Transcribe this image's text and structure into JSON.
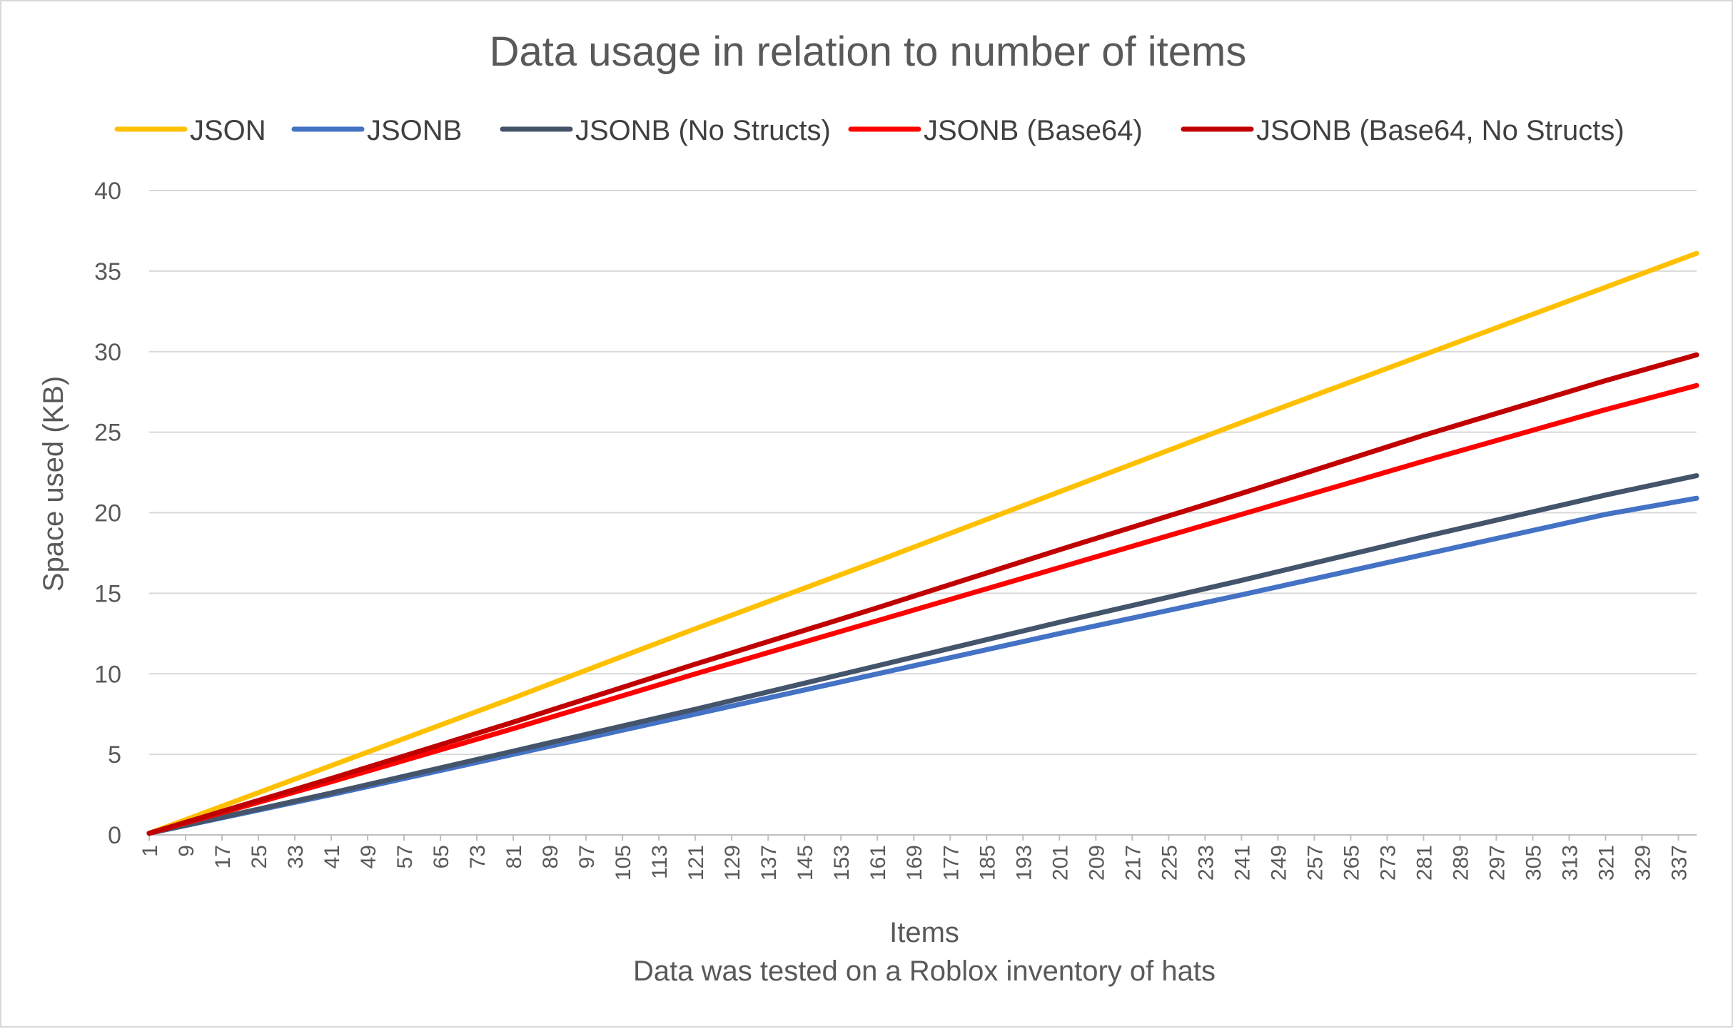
{
  "chart_data": {
    "type": "line",
    "title": "Data usage in relation to number of items",
    "xlabel": "Items",
    "subtitle": "Data was tested on a Roblox inventory of hats",
    "ylabel": "Space used (KB)",
    "ylim": [
      0,
      40
    ],
    "yticks": [
      "0",
      "5",
      "10",
      "15",
      "20",
      "25",
      "30",
      "35",
      "40"
    ],
    "xlim": [
      1,
      341
    ],
    "x_tick_labels": [
      "1",
      "9",
      "17",
      "25",
      "33",
      "41",
      "49",
      "57",
      "65",
      "73",
      "81",
      "89",
      "97",
      "105",
      "113",
      "121",
      "129",
      "137",
      "145",
      "153",
      "161",
      "169",
      "177",
      "185",
      "193",
      "201",
      "209",
      "217",
      "225",
      "233",
      "241",
      "249",
      "257",
      "265",
      "273",
      "281",
      "289",
      "297",
      "305",
      "313",
      "321",
      "329",
      "337"
    ],
    "grid": true,
    "legend_position": "top",
    "series": [
      {
        "name": "JSON",
        "color": "#FFC000",
        "x": [
          1,
          41,
          81,
          121,
          161,
          201,
          241,
          281,
          321,
          341
        ],
        "values": [
          0.1,
          4.3,
          8.5,
          12.8,
          17.0,
          21.3,
          25.6,
          29.8,
          34.0,
          36.1
        ]
      },
      {
        "name": "JSONB",
        "color": "#4472C4",
        "x": [
          1,
          41,
          81,
          121,
          161,
          201,
          241,
          281,
          321,
          341
        ],
        "values": [
          0.1,
          2.5,
          5.0,
          7.5,
          10.0,
          12.5,
          14.9,
          17.4,
          19.9,
          20.9
        ]
      },
      {
        "name": "JSONB (No Structs)",
        "color": "#44546A",
        "x": [
          1,
          41,
          81,
          121,
          161,
          201,
          241,
          281,
          321,
          341
        ],
        "values": [
          0.1,
          2.6,
          5.2,
          7.8,
          10.5,
          13.2,
          15.8,
          18.5,
          21.1,
          22.3
        ]
      },
      {
        "name": "JSONB (Base64)",
        "color": "#FF0000",
        "x": [
          1,
          41,
          81,
          121,
          161,
          201,
          241,
          281,
          321,
          341
        ],
        "values": [
          0.1,
          3.3,
          6.6,
          10.0,
          13.3,
          16.6,
          19.9,
          23.2,
          26.4,
          27.9
        ]
      },
      {
        "name": "JSONB (Base64, No Structs)",
        "color": "#C00000",
        "x": [
          1,
          41,
          81,
          121,
          161,
          201,
          241,
          281,
          321,
          341
        ],
        "values": [
          0.1,
          3.5,
          7.0,
          10.6,
          14.1,
          17.7,
          21.2,
          24.8,
          28.2,
          29.8
        ]
      }
    ]
  }
}
